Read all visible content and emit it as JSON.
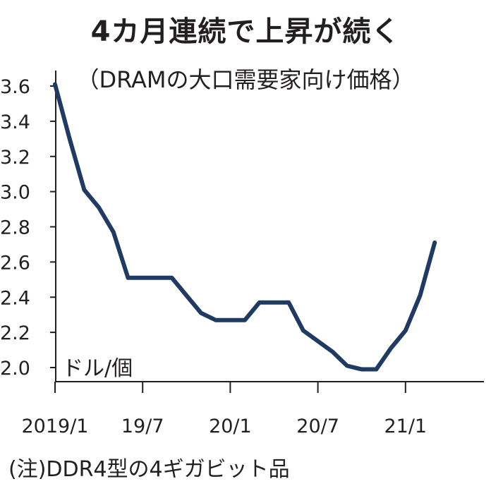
{
  "chart_data": {
    "type": "line",
    "title": "4カ月連続で上昇が続く",
    "subtitle": "（DRAMの大口需要家向け価格）",
    "unit_label": "ドル/個",
    "note": "(注)DDR4型の4ギガビット品",
    "ylim": [
      1.9,
      3.7
    ],
    "y_ticks": [
      2.0,
      2.2,
      2.4,
      2.6,
      2.8,
      3.0,
      3.2,
      3.4,
      3.6
    ],
    "y_tick_labels": [
      "2.0",
      "2.2",
      "2.4",
      "2.6",
      "2.8",
      "3.0",
      "3.2",
      "3.4",
      "3.6"
    ],
    "x_ticks": [
      {
        "label": "2019/1",
        "index": 0
      },
      {
        "label": "19/7",
        "index": 6
      },
      {
        "label": "20/1",
        "index": 12
      },
      {
        "label": "20/7",
        "index": 18
      },
      {
        "label": "21/1",
        "index": 24
      }
    ],
    "grid": false,
    "line_color": "#1f3a63",
    "series": [
      {
        "x": [
          "2019/1",
          "2019/2",
          "2019/3",
          "2019/4",
          "2019/5",
          "2019/6",
          "2019/7",
          "2019/8",
          "2019/9",
          "2019/10",
          "2019/11",
          "2019/12",
          "2020/1",
          "2020/2",
          "2020/3",
          "2020/4",
          "2020/5",
          "2020/6",
          "2020/7",
          "2020/8",
          "2020/9",
          "2020/10",
          "2020/11",
          "2020/12",
          "2021/1",
          "2021/2",
          "2021/3"
        ],
        "values": [
          3.61,
          3.3,
          3.01,
          2.91,
          2.77,
          2.51,
          2.51,
          2.51,
          2.51,
          2.41,
          2.31,
          2.27,
          2.27,
          2.27,
          2.37,
          2.37,
          2.37,
          2.21,
          2.15,
          2.09,
          2.01,
          1.99,
          1.99,
          2.11,
          2.21,
          2.41,
          2.71
        ]
      }
    ]
  }
}
